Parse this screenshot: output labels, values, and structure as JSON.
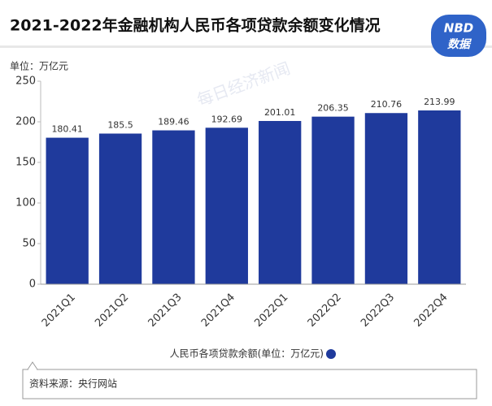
{
  "chart_data": {
    "type": "bar",
    "title": "2021-2022年金融机构人民币各项贷款余额变化情况",
    "y_label": "单位：万亿元",
    "categories": [
      "2021Q1",
      "2021Q2",
      "2021Q3",
      "2021Q4",
      "2022Q1",
      "2022Q2",
      "2022Q3",
      "2022Q4"
    ],
    "series": [
      {
        "name": "人民币各项贷款余额(单位：万亿元)",
        "color": "#1f3a9c",
        "values": [
          180.41,
          185.5,
          189.46,
          192.69,
          201.01,
          206.35,
          210.76,
          213.99
        ]
      }
    ],
    "ylim": [
      0,
      250
    ],
    "yticks": [
      0,
      50,
      100,
      150,
      200,
      250
    ],
    "grid": false
  },
  "logo": {
    "top": "NBD",
    "bottom": "数据"
  },
  "source": "资料来源：央行网站",
  "watermark": "每日经济新闻"
}
